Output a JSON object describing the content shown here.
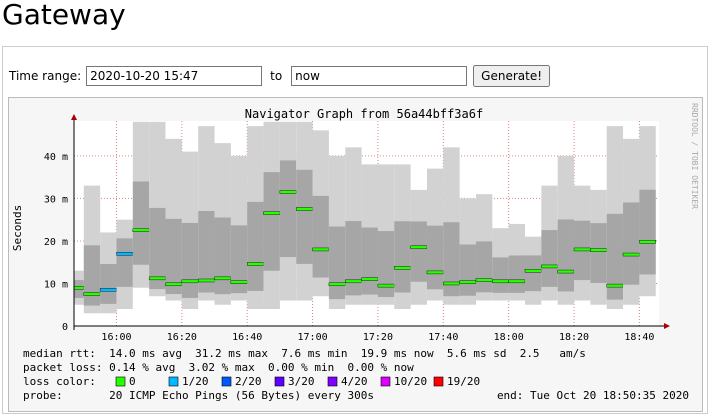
{
  "header": {
    "title": "Gateway"
  },
  "form": {
    "label": "Time range:",
    "from": "2020-10-20 15:47",
    "to_label": "to",
    "to": "now",
    "button": "Generate!"
  },
  "chart_data": {
    "type": "smoke",
    "title": "Navigator Graph from 56a44bff3a6f",
    "side_text": "RRDTOOL / TOBI OETIKER",
    "y_label": "Seconds",
    "x": [
      "15:45",
      "15:50",
      "15:55",
      "16:00",
      "16:05",
      "16:10",
      "16:15",
      "16:20",
      "16:25",
      "16:30",
      "16:35",
      "16:40",
      "16:45",
      "16:50",
      "16:55",
      "17:00",
      "17:05",
      "17:10",
      "17:15",
      "17:20",
      "17:25",
      "17:30",
      "17:35",
      "17:40",
      "17:45",
      "17:50",
      "17:55",
      "18:00",
      "18:05",
      "18:10",
      "18:15",
      "18:20",
      "18:25",
      "18:30",
      "18:35",
      "18:40"
    ],
    "medians": [
      0.009,
      0.0075,
      0.0085,
      0.017,
      0.0225,
      0.0112,
      0.0098,
      0.0105,
      0.0107,
      0.0112,
      0.0103,
      0.0146,
      0.0265,
      0.0315,
      0.0275,
      0.018,
      0.0098,
      0.0105,
      0.011,
      0.0095,
      0.0137,
      0.0185,
      0.0126,
      0.01,
      0.0103,
      0.0108,
      0.0105,
      0.0105,
      0.013,
      0.014,
      0.0128,
      0.018,
      0.0178,
      0.0095,
      0.0168,
      0.0198
    ],
    "median_colors": [
      "#26ff00",
      "#26ff00",
      "#00b8ff",
      "#00b8ff",
      "#26ff00",
      "#26ff00",
      "#26ff00",
      "#26ff00",
      "#26ff00",
      "#26ff00",
      "#26ff00",
      "#26ff00",
      "#26ff00",
      "#26ff00",
      "#26ff00",
      "#26ff00",
      "#26ff00",
      "#26ff00",
      "#26ff00",
      "#26ff00",
      "#26ff00",
      "#26ff00",
      "#26ff00",
      "#26ff00",
      "#26ff00",
      "#26ff00",
      "#26ff00",
      "#26ff00",
      "#26ff00",
      "#26ff00",
      "#26ff00",
      "#26ff00",
      "#26ff00",
      "#26ff00",
      "#26ff00",
      "#26ff00"
    ],
    "smoke_low": [
      0.005,
      0.003,
      0.003,
      0.004,
      0.009,
      0.007,
      0.006,
      0.004,
      0.006,
      0.005,
      0.006,
      0.004,
      0.004,
      0.006,
      0.006,
      0.007,
      0.004,
      0.005,
      0.005,
      0.005,
      0.004,
      0.005,
      0.006,
      0.005,
      0.005,
      0.006,
      0.006,
      0.006,
      0.005,
      0.006,
      0.005,
      0.006,
      0.005,
      0.004,
      0.005,
      0.007
    ],
    "smoke_high": [
      0.013,
      0.033,
      0.022,
      0.025,
      0.048,
      0.048,
      0.044,
      0.041,
      0.047,
      0.043,
      0.04,
      0.047,
      0.048,
      0.048,
      0.048,
      0.046,
      0.04,
      0.042,
      0.038,
      0.038,
      0.038,
      0.032,
      0.037,
      0.042,
      0.03,
      0.031,
      0.023,
      0.024,
      0.021,
      0.033,
      0.04,
      0.033,
      0.032,
      0.047,
      0.044,
      0.047
    ],
    "xlim": [
      "15:47",
      "18:46"
    ],
    "xticks": [
      "16:00",
      "16:20",
      "16:40",
      "17:00",
      "17:20",
      "17:40",
      "18:00",
      "18:20",
      "18:40"
    ],
    "ylim": [
      0,
      0.0482
    ],
    "yticks": [
      {
        "value": 0,
        "label": "0"
      },
      {
        "value": 0.01,
        "label": "10 m"
      },
      {
        "value": 0.02,
        "label": "20 m"
      },
      {
        "value": 0.03,
        "label": "30 m"
      },
      {
        "value": 0.04,
        "label": "40 m"
      }
    ],
    "grid": true,
    "stats": [
      "median rtt:  14.0 ms avg  31.2 ms max  7.6 ms min  19.9 ms now  5.6 ms sd  2.5   am/s",
      "packet loss: 0.14 % avg  3.02 % max  0.00 % min  0.00 % now"
    ],
    "loss_label": "loss color:",
    "loss_colors": [
      {
        "label": "0",
        "color": "#26ff00"
      },
      {
        "label": "1/20",
        "color": "#00b8ff"
      },
      {
        "label": "2/20",
        "color": "#0059ff"
      },
      {
        "label": "3/20",
        "color": "#5e00ff"
      },
      {
        "label": "4/20",
        "color": "#7e00ff"
      },
      {
        "label": "10/20",
        "color": "#dd00ff"
      },
      {
        "label": "19/20",
        "color": "#ff0000"
      }
    ],
    "probe": "probe:       20 ICMP Echo Pings (56 Bytes) every 300s",
    "end": "end: Tue Oct 20 18:50:35 2020"
  }
}
